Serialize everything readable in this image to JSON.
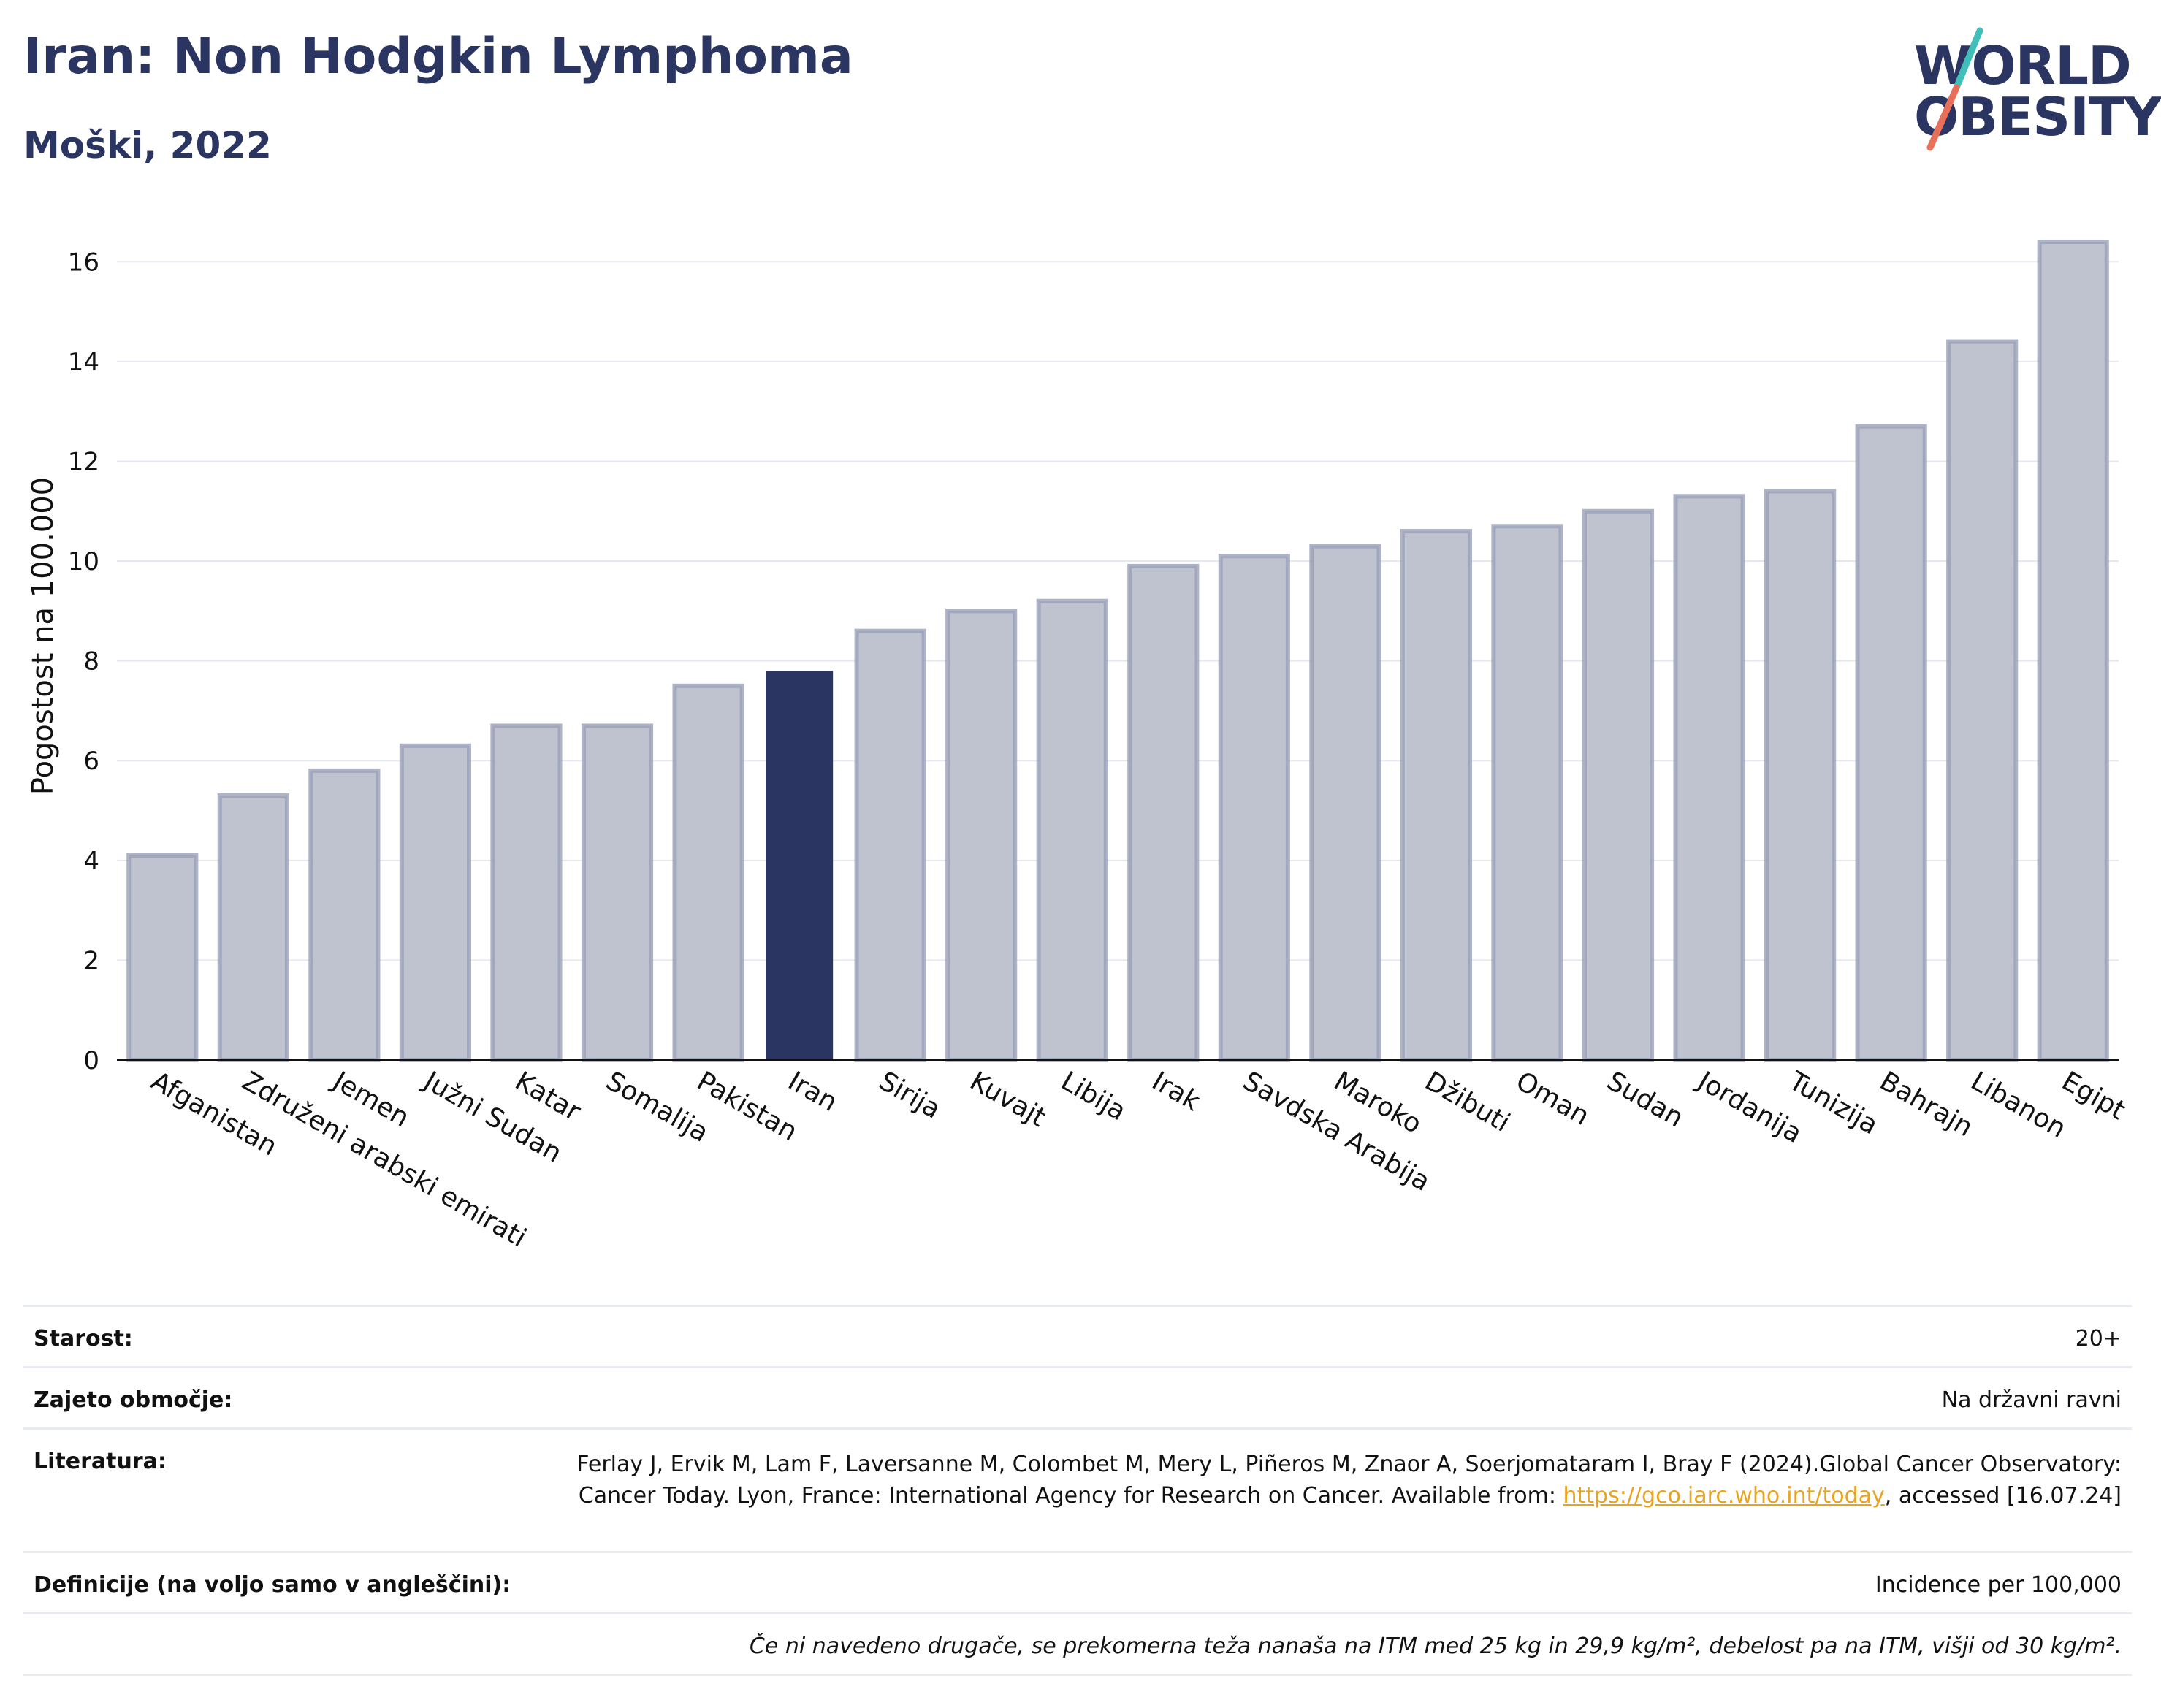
{
  "header": {
    "title": "Iran: Non Hodgkin Lymphoma",
    "subtitle": "Moški, 2022"
  },
  "logo": {
    "line1": "WORLD",
    "line2": "OBESITY"
  },
  "colors": {
    "highlight": "#2b3561",
    "bar": "#bfc3d0",
    "bar_stroke": "#9aa0b8",
    "accent_teal": "#3fbfb8",
    "accent_coral": "#e8705a"
  },
  "chart_data": {
    "type": "bar",
    "ylabel": "Pogostost na 100.000",
    "ylim": [
      0,
      17
    ],
    "yticks": [
      0,
      2,
      4,
      6,
      8,
      10,
      12,
      14,
      16
    ],
    "grid": true,
    "highlight": "Iran",
    "categories": [
      "Afganistan",
      "Združeni arabski emirati",
      "Jemen",
      "Južni Sudan",
      "Katar",
      "Somalija",
      "Pakistan",
      "Iran",
      "Sirija",
      "Kuvajt",
      "Libija",
      "Irak",
      "Savdska Arabija",
      "Maroko",
      "Džibuti",
      "Oman",
      "Sudan",
      "Jordanija",
      "Tunizija",
      "Bahrajn",
      "Libanon",
      "Egipt"
    ],
    "values": [
      4.1,
      5.3,
      5.8,
      6.3,
      6.7,
      6.7,
      7.5,
      7.8,
      8.6,
      9.0,
      9.2,
      9.9,
      10.1,
      10.3,
      10.6,
      10.7,
      11.0,
      11.3,
      11.4,
      12.7,
      14.4,
      16.4
    ]
  },
  "info": {
    "age_label": "Starost:",
    "age_value": "20+",
    "coverage_label": "Zajeto območje:",
    "coverage_value": "Na državni ravni",
    "lit_label": "Literatura:",
    "lit_text": "Ferlay J, Ervik M, Lam F, Laversanne M, Colombet M, Mery L, Piñeros M, Znaor A, Soerjomataram I, Bray F (2024).Global Cancer Observatory: Cancer Today. Lyon, France: International Agency for Research on Cancer. Available from: ",
    "lit_link": "https://gco.iarc.who.int/today",
    "lit_tail": ", accessed [16.07.24]",
    "def_label": "Definicije (na voljo samo v angleščini):",
    "def_value": "Incidence per 100,000",
    "note": "Če ni navedeno drugače, se prekomerna teža nanaša na ITM med 25 kg in 29,9 kg/m², debelost pa na ITM, višji od 30 kg/m²."
  }
}
